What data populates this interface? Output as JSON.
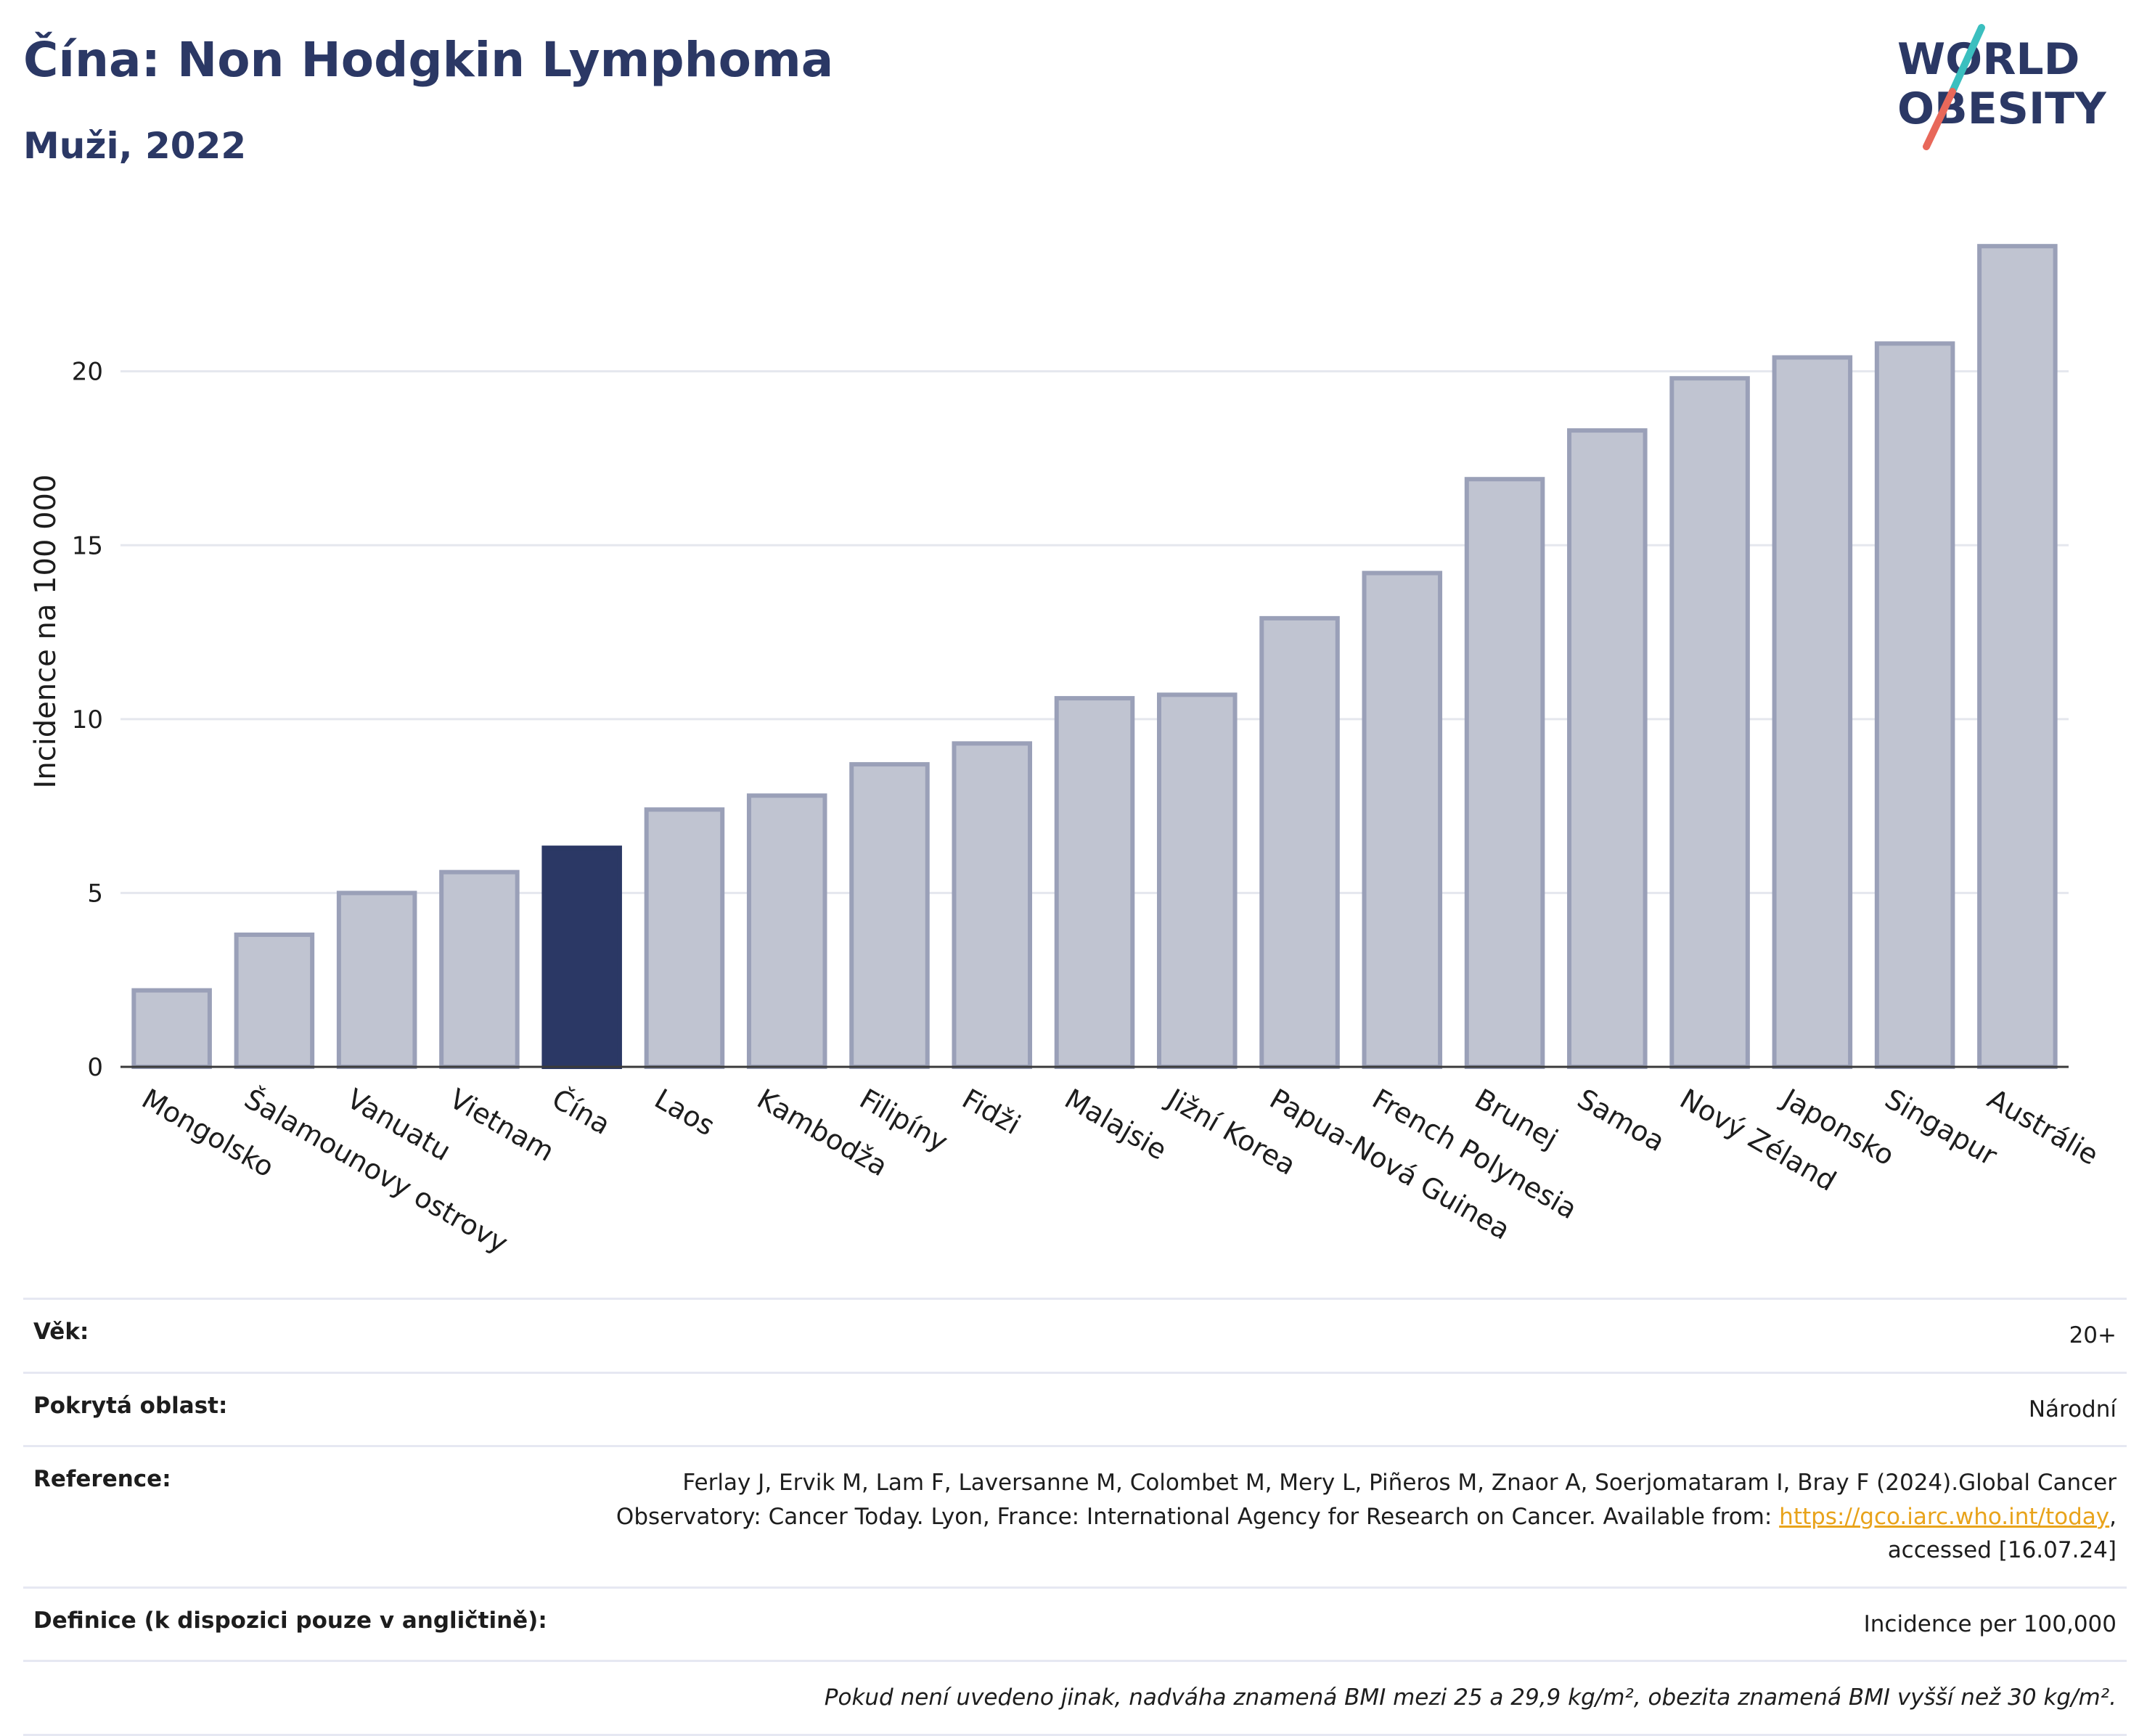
{
  "header": {
    "title": "Čína: Non Hodgkin Lymphoma",
    "subtitle": "Muži, 2022"
  },
  "logo": {
    "line1": "WORLD",
    "line2": "OBESITY",
    "colors": {
      "text": "#2b3865",
      "slash_top": "#3bbfbf",
      "slash_bottom": "#e8685a"
    }
  },
  "chart_data": {
    "type": "bar",
    "title": "",
    "xlabel": "",
    "ylabel": "Incidence na 100 000",
    "ylim": [
      0,
      24
    ],
    "yticks": [
      0,
      5,
      10,
      15,
      20
    ],
    "grid": true,
    "categories": [
      "Mongolsko",
      "Šalamounovy ostrovy",
      "Vanuatu",
      "Vietnam",
      "Čína",
      "Laos",
      "Kambodža",
      "Filipíny",
      "Fidži",
      "Malajsie",
      "Jižní Korea",
      "Papua-Nová Guinea",
      "French Polynesia",
      "Brunej",
      "Samoa",
      "Nový Zéland",
      "Japonsko",
      "Singapur",
      "Austrálie"
    ],
    "values": [
      2.2,
      3.8,
      5.0,
      5.6,
      6.3,
      7.4,
      7.8,
      8.7,
      9.3,
      10.6,
      10.7,
      12.9,
      14.2,
      16.9,
      18.3,
      19.8,
      20.4,
      20.8,
      23.6
    ],
    "highlight": "Čína",
    "colors": {
      "bar": "#c0c4d1",
      "bar_border": "#9aa0b8",
      "highlight": "#2b3865",
      "grid": "#e5e7ee",
      "axis": "#3a3a3a"
    }
  },
  "info": {
    "age_label": "Věk:",
    "age_value": "20+",
    "coverage_label": "Pokrytá oblast:",
    "coverage_value": "Národní",
    "reference_label": "Reference:",
    "reference_line1": "Ferlay J, Ervik M, Lam F, Laversanne M, Colombet M, Mery L, Piñeros M, Znaor A, Soerjomataram I, Bray F (2024).Global Cancer",
    "reference_line2": "Observatory: Cancer Today. Lyon, France: International Agency for Research on Cancer. Available from: ",
    "reference_link": "https://gco.iarc.who.int/today",
    "reference_line2_end": ",",
    "reference_line3": "accessed [16.07.24]",
    "definition_label": "Definice (k dispozici pouze v angličtině):",
    "definition_value": "Incidence per 100,000",
    "note": "Pokud není uvedeno jinak, nadváha znamená BMI mezi 25 a 29,9 kg/m², obezita znamená BMI vyšší než 30 kg/m²."
  }
}
